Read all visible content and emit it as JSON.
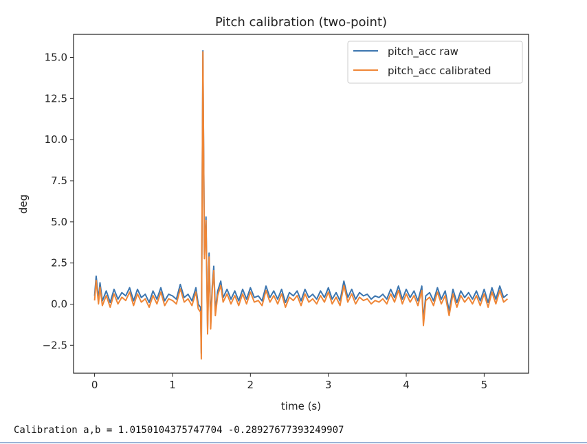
{
  "chart_data": {
    "type": "line",
    "title": "Pitch calibration (two-point)",
    "xlabel": "time (s)",
    "ylabel": "deg",
    "xlim": [
      -0.27,
      5.57
    ],
    "ylim": [
      -4.2,
      16.4
    ],
    "xticks": [
      0,
      1,
      2,
      3,
      4,
      5
    ],
    "xtick_labels": [
      "0",
      "1",
      "2",
      "3",
      "4",
      "5"
    ],
    "yticks": [
      -2.5,
      0,
      2.5,
      5,
      7.5,
      10,
      12.5,
      15
    ],
    "ytick_labels": [
      "−2.5",
      "0.0",
      "2.5",
      "5.0",
      "7.5",
      "10.0",
      "12.5",
      "15.0"
    ],
    "grid": false,
    "legend_position": "top-right",
    "x": [
      0.0,
      0.02,
      0.05,
      0.07,
      0.1,
      0.15,
      0.2,
      0.25,
      0.3,
      0.35,
      0.4,
      0.45,
      0.5,
      0.55,
      0.6,
      0.65,
      0.7,
      0.75,
      0.8,
      0.85,
      0.9,
      0.95,
      1.0,
      1.05,
      1.1,
      1.15,
      1.2,
      1.25,
      1.3,
      1.33,
      1.36,
      1.37,
      1.39,
      1.41,
      1.43,
      1.45,
      1.47,
      1.49,
      1.51,
      1.53,
      1.55,
      1.58,
      1.62,
      1.65,
      1.7,
      1.75,
      1.8,
      1.85,
      1.9,
      1.95,
      2.0,
      2.05,
      2.1,
      2.15,
      2.2,
      2.25,
      2.3,
      2.35,
      2.4,
      2.45,
      2.5,
      2.55,
      2.6,
      2.65,
      2.7,
      2.75,
      2.8,
      2.85,
      2.9,
      2.95,
      3.0,
      3.05,
      3.1,
      3.15,
      3.2,
      3.25,
      3.3,
      3.35,
      3.4,
      3.45,
      3.5,
      3.55,
      3.6,
      3.65,
      3.7,
      3.75,
      3.8,
      3.85,
      3.9,
      3.95,
      4.0,
      4.05,
      4.1,
      4.15,
      4.2,
      4.22,
      4.25,
      4.3,
      4.35,
      4.4,
      4.45,
      4.5,
      4.55,
      4.6,
      4.65,
      4.7,
      4.75,
      4.8,
      4.85,
      4.9,
      4.95,
      5.0,
      5.05,
      5.1,
      5.15,
      5.2,
      5.25,
      5.3
    ],
    "series": [
      {
        "name": "pitch_acc raw",
        "color": "#3b75af",
        "values": [
          0.5,
          1.7,
          0.3,
          1.3,
          0.2,
          0.8,
          0.1,
          0.9,
          0.3,
          0.7,
          0.5,
          1.0,
          0.2,
          0.9,
          0.4,
          0.6,
          0.1,
          0.8,
          0.3,
          1.0,
          0.2,
          0.6,
          0.5,
          0.3,
          1.2,
          0.4,
          0.6,
          0.2,
          1.0,
          0.0,
          -0.2,
          -3.0,
          15.4,
          3.0,
          5.3,
          -1.5,
          3.1,
          -1.2,
          1.1,
          2.3,
          -0.4,
          0.8,
          1.4,
          0.4,
          0.9,
          0.3,
          0.8,
          0.2,
          0.9,
          0.3,
          1.0,
          0.4,
          0.5,
          0.2,
          1.1,
          0.4,
          0.8,
          0.3,
          0.9,
          0.1,
          0.7,
          0.5,
          0.8,
          0.2,
          0.9,
          0.4,
          0.6,
          0.3,
          0.8,
          0.4,
          1.0,
          0.3,
          0.7,
          0.2,
          1.4,
          0.4,
          0.9,
          0.3,
          0.7,
          0.5,
          0.6,
          0.3,
          0.5,
          0.4,
          0.6,
          0.3,
          0.9,
          0.4,
          1.1,
          0.3,
          0.9,
          0.4,
          0.8,
          0.2,
          1.1,
          -1.0,
          0.5,
          0.7,
          0.2,
          1.0,
          0.3,
          0.8,
          -0.4,
          0.9,
          0.1,
          0.8,
          0.4,
          0.7,
          0.3,
          0.8,
          0.2,
          0.9,
          0.1,
          1.0,
          0.3,
          1.1,
          0.4,
          0.6
        ]
      },
      {
        "name": "pitch_acc calibrated",
        "color": "#ef8636",
        "values": [
          0.22,
          1.44,
          0.01,
          1.03,
          -0.09,
          0.52,
          -0.19,
          0.62,
          0.01,
          0.42,
          0.22,
          0.73,
          -0.09,
          0.62,
          0.12,
          0.32,
          -0.19,
          0.52,
          0.01,
          0.73,
          -0.09,
          0.32,
          0.22,
          0.01,
          0.93,
          0.12,
          0.32,
          -0.09,
          0.73,
          -0.29,
          -0.49,
          -3.33,
          15.34,
          2.76,
          5.09,
          -1.81,
          2.86,
          -1.51,
          0.83,
          2.04,
          -0.7,
          0.52,
          1.13,
          0.12,
          0.62,
          0.01,
          0.52,
          -0.09,
          0.62,
          0.01,
          0.73,
          0.12,
          0.22,
          -0.09,
          0.83,
          0.12,
          0.52,
          0.01,
          0.62,
          -0.19,
          0.42,
          0.22,
          0.52,
          -0.09,
          0.62,
          0.12,
          0.32,
          0.01,
          0.52,
          0.12,
          0.73,
          0.01,
          0.42,
          -0.09,
          1.13,
          0.12,
          0.62,
          0.01,
          0.42,
          0.22,
          0.32,
          0.01,
          0.22,
          0.12,
          0.32,
          0.01,
          0.62,
          0.12,
          0.83,
          0.01,
          0.62,
          0.12,
          0.52,
          -0.09,
          0.83,
          -1.3,
          0.22,
          0.42,
          -0.09,
          0.73,
          0.01,
          0.52,
          -0.7,
          0.62,
          -0.19,
          0.52,
          0.12,
          0.42,
          0.01,
          0.52,
          -0.09,
          0.62,
          -0.19,
          0.73,
          0.01,
          0.83,
          0.12,
          0.32
        ]
      }
    ]
  },
  "output": {
    "text": "Calibration a,b = 1.0150104375747704 -0.28927677393249907"
  }
}
